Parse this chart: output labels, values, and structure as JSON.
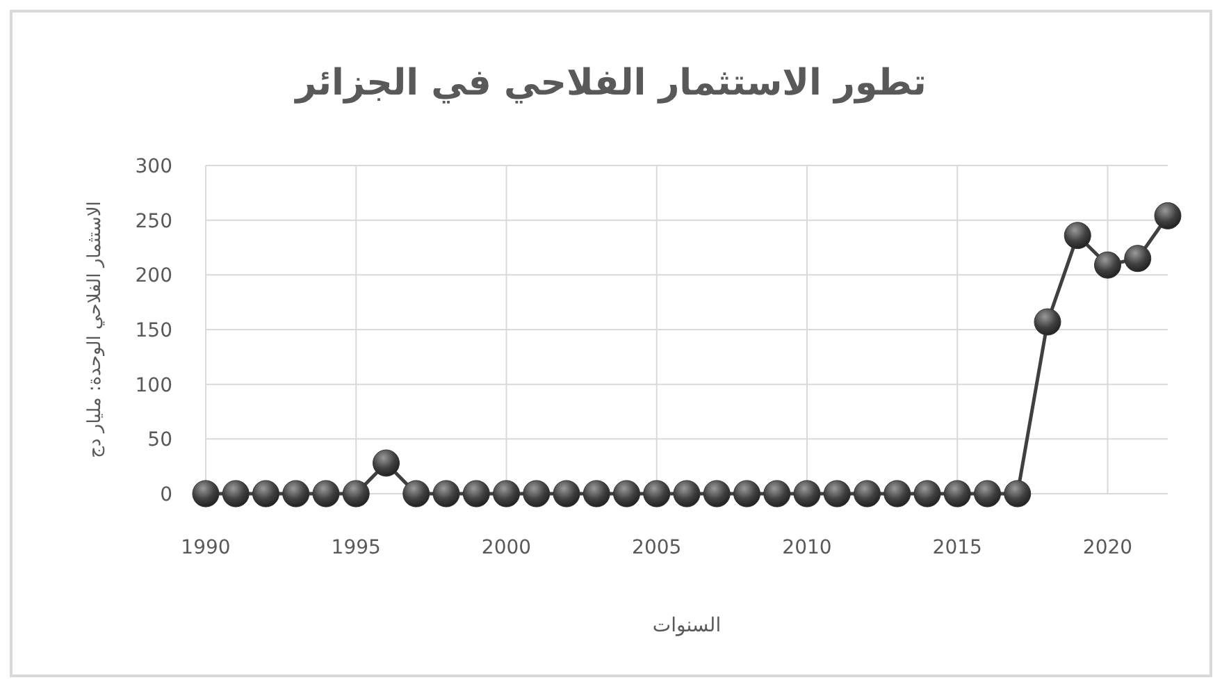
{
  "chart_data": {
    "type": "line",
    "title": "تطور الاستثمار الفلاحي في الجزائر",
    "xlabel": "السنوات",
    "ylabel": "الاستثمار الفلاحي الوحدة: مليار دج",
    "x": [
      1990,
      1991,
      1992,
      1993,
      1994,
      1995,
      1996,
      1997,
      1998,
      1999,
      2000,
      2001,
      2002,
      2003,
      2004,
      2005,
      2006,
      2007,
      2008,
      2009,
      2010,
      2011,
      2012,
      2013,
      2014,
      2015,
      2016,
      2017,
      2018,
      2019,
      2020,
      2021,
      2022
    ],
    "series": [
      {
        "color": "#404040",
        "values": [
          0,
          0,
          0,
          0,
          0,
          0,
          28,
          0,
          0,
          0,
          0,
          0,
          0,
          0,
          0,
          0,
          0,
          0,
          0,
          0,
          0,
          0,
          0,
          0,
          0,
          0,
          0,
          0,
          157,
          236,
          209,
          215,
          254
        ]
      }
    ],
    "xlim": [
      1990,
      2022
    ],
    "xticks": [
      1990,
      1995,
      2000,
      2005,
      2010,
      2015,
      2020
    ],
    "ylim": [
      0,
      300
    ],
    "yticks": [
      0,
      50,
      100,
      150,
      200,
      250,
      300
    ],
    "grid": true,
    "marker": "circle",
    "line_style": "solid"
  }
}
